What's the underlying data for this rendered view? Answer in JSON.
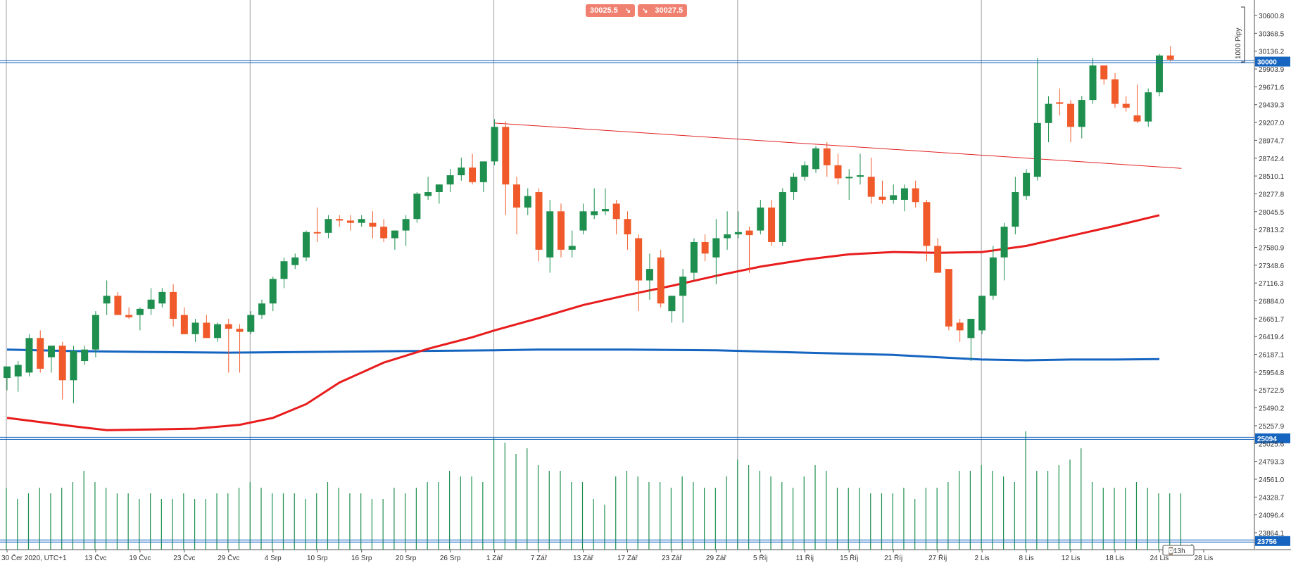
{
  "quote": {
    "sell": "30025.5",
    "buy": "30027.5",
    "sell_arrow_icon": "arrow-down-right-icon",
    "buy_arrow_icon": "arrow-down-right-icon"
  },
  "pip_ruler_label": "1000 Pipy",
  "colors": {
    "up": "#1e8f4e",
    "down": "#f05a2a",
    "ma_red": "#e81c1c",
    "ma_blue": "#1565c0",
    "hline": "#1565c0",
    "trend": "#e02020",
    "volume": "#1e8f4e",
    "grid": "#9e9e9e",
    "pill": "#f08070"
  },
  "horizontal_lines": [
    {
      "label": "30000",
      "price": 30000
    },
    {
      "label": "25094",
      "price": 25094
    },
    {
      "label": "23756",
      "price": 23756
    }
  ],
  "chart_data": {
    "type": "candlestick",
    "instrument_timezone": "UTC+1",
    "ylim": [
      23700,
      30750
    ],
    "y_ticks": [
      "30600.8",
      "30368.5",
      "30136.2",
      "29903.9",
      "29671.6",
      "29439.3",
      "29207.0",
      "28974.7",
      "28742.4",
      "28510.1",
      "28277.8",
      "28045.5",
      "27813.2",
      "27580.9",
      "27348.6",
      "27116.3",
      "26884.0",
      "26651.7",
      "26419.4",
      "26187.1",
      "25954.8",
      "25722.5",
      "25490.2",
      "25257.9",
      "25025.6",
      "24793.3",
      "24561.0",
      "24328.7",
      "24096.4",
      "23864.1"
    ],
    "x_tick_labels": [
      "30 Čer 2020, UTC+1",
      "13 Čvc",
      "19 Čvc",
      "23 Čvc",
      "29 Čvc",
      "4 Srp",
      "10 Srp",
      "16 Srp",
      "20 Srp",
      "26 Srp",
      "1 Zář",
      "7 Zář",
      "13 Zář",
      "17 Zář",
      "23 Zář",
      "29 Zář",
      "5 Říj",
      "11 Říj",
      "15 Říj",
      "21 Říj",
      "27 Říj",
      "2 Lis",
      "8 Lis",
      "12 Lis",
      "18 Lis",
      "24 Lis",
      "28 Lis"
    ],
    "x_tick_index": [
      0,
      8,
      12,
      16,
      20,
      24,
      28,
      32,
      36,
      40,
      44,
      48,
      52,
      56,
      60,
      64,
      68,
      72,
      76,
      80,
      84,
      88,
      92,
      96,
      100,
      104,
      108
    ],
    "vertical_gridlines_index": [
      0,
      22,
      44,
      66,
      88
    ],
    "candles": [
      {
        "o": 25880,
        "h": 25960,
        "l": 25720,
        "c": 26030
      },
      {
        "o": 25900,
        "h": 26100,
        "l": 25700,
        "c": 26050
      },
      {
        "o": 25950,
        "h": 26450,
        "l": 25900,
        "c": 26400
      },
      {
        "o": 26400,
        "h": 26500,
        "l": 25950,
        "c": 26000
      },
      {
        "o": 26150,
        "h": 26300,
        "l": 25950,
        "c": 26300
      },
      {
        "o": 26300,
        "h": 26350,
        "l": 25600,
        "c": 25850
      },
      {
        "o": 25850,
        "h": 26300,
        "l": 25550,
        "c": 26230
      },
      {
        "o": 26100,
        "h": 26300,
        "l": 26050,
        "c": 26250
      },
      {
        "o": 26250,
        "h": 26750,
        "l": 26150,
        "c": 26700
      },
      {
        "o": 26850,
        "h": 27150,
        "l": 26700,
        "c": 26950
      },
      {
        "o": 26950,
        "h": 27000,
        "l": 26700,
        "c": 26700
      },
      {
        "o": 26700,
        "h": 26800,
        "l": 26650,
        "c": 26670
      },
      {
        "o": 26700,
        "h": 26800,
        "l": 26500,
        "c": 26780
      },
      {
        "o": 26780,
        "h": 27050,
        "l": 26700,
        "c": 26900
      },
      {
        "o": 26850,
        "h": 27050,
        "l": 26800,
        "c": 27000
      },
      {
        "o": 27000,
        "h": 27100,
        "l": 26550,
        "c": 26650
      },
      {
        "o": 26700,
        "h": 26800,
        "l": 26450,
        "c": 26450
      },
      {
        "o": 26450,
        "h": 26650,
        "l": 26350,
        "c": 26600
      },
      {
        "o": 26600,
        "h": 26700,
        "l": 26400,
        "c": 26400
      },
      {
        "o": 26400,
        "h": 26600,
        "l": 26350,
        "c": 26580
      },
      {
        "o": 26580,
        "h": 26650,
        "l": 25950,
        "c": 26520
      },
      {
        "o": 26520,
        "h": 26580,
        "l": 25950,
        "c": 26480
      },
      {
        "o": 26480,
        "h": 26750,
        "l": 26450,
        "c": 26700
      },
      {
        "o": 26700,
        "h": 26900,
        "l": 26650,
        "c": 26850
      },
      {
        "o": 26850,
        "h": 27200,
        "l": 26750,
        "c": 27170
      },
      {
        "o": 27170,
        "h": 27450,
        "l": 27050,
        "c": 27400
      },
      {
        "o": 27350,
        "h": 27500,
        "l": 27300,
        "c": 27450
      },
      {
        "o": 27450,
        "h": 27800,
        "l": 27400,
        "c": 27780
      },
      {
        "o": 27780,
        "h": 28100,
        "l": 27650,
        "c": 27770
      },
      {
        "o": 27770,
        "h": 28000,
        "l": 27700,
        "c": 27950
      },
      {
        "o": 27950,
        "h": 28000,
        "l": 27850,
        "c": 27930
      },
      {
        "o": 27930,
        "h": 28000,
        "l": 27800,
        "c": 27900
      },
      {
        "o": 27900,
        "h": 28000,
        "l": 27850,
        "c": 27950
      },
      {
        "o": 27900,
        "h": 28050,
        "l": 27700,
        "c": 27850
      },
      {
        "o": 27850,
        "h": 27950,
        "l": 27650,
        "c": 27700
      },
      {
        "o": 27700,
        "h": 27800,
        "l": 27550,
        "c": 27800
      },
      {
        "o": 27800,
        "h": 28000,
        "l": 27600,
        "c": 27950
      },
      {
        "o": 27950,
        "h": 28300,
        "l": 27900,
        "c": 28280
      },
      {
        "o": 28250,
        "h": 28500,
        "l": 28200,
        "c": 28300
      },
      {
        "o": 28300,
        "h": 28400,
        "l": 28150,
        "c": 28400
      },
      {
        "o": 28400,
        "h": 28600,
        "l": 28300,
        "c": 28520
      },
      {
        "o": 28520,
        "h": 28750,
        "l": 28450,
        "c": 28620
      },
      {
        "o": 28620,
        "h": 28800,
        "l": 28400,
        "c": 28430
      },
      {
        "o": 28430,
        "h": 28700,
        "l": 28300,
        "c": 28700
      },
      {
        "o": 28700,
        "h": 29250,
        "l": 28650,
        "c": 29150
      },
      {
        "o": 29150,
        "h": 29220,
        "l": 28000,
        "c": 28400
      },
      {
        "o": 28400,
        "h": 28500,
        "l": 27750,
        "c": 28100
      },
      {
        "o": 28100,
        "h": 28350,
        "l": 28000,
        "c": 28250
      },
      {
        "o": 28300,
        "h": 28350,
        "l": 27400,
        "c": 27550
      },
      {
        "o": 27450,
        "h": 28200,
        "l": 27250,
        "c": 28050
      },
      {
        "o": 28050,
        "h": 28150,
        "l": 27450,
        "c": 27550
      },
      {
        "o": 27550,
        "h": 27800,
        "l": 27450,
        "c": 27600
      },
      {
        "o": 27800,
        "h": 28150,
        "l": 27750,
        "c": 28050
      },
      {
        "o": 28000,
        "h": 28350,
        "l": 27950,
        "c": 28050
      },
      {
        "o": 28050,
        "h": 28350,
        "l": 28000,
        "c": 28080
      },
      {
        "o": 28150,
        "h": 28200,
        "l": 27750,
        "c": 27950
      },
      {
        "o": 27950,
        "h": 28050,
        "l": 27550,
        "c": 27750
      },
      {
        "o": 27700,
        "h": 27750,
        "l": 26750,
        "c": 27150
      },
      {
        "o": 27150,
        "h": 27500,
        "l": 26900,
        "c": 27300
      },
      {
        "o": 27450,
        "h": 27550,
        "l": 26800,
        "c": 26850
      },
      {
        "o": 26750,
        "h": 26950,
        "l": 26600,
        "c": 26950
      },
      {
        "o": 26950,
        "h": 27300,
        "l": 26600,
        "c": 27200
      },
      {
        "o": 27250,
        "h": 27700,
        "l": 27150,
        "c": 27650
      },
      {
        "o": 27650,
        "h": 27750,
        "l": 27400,
        "c": 27500
      },
      {
        "o": 27450,
        "h": 27950,
        "l": 27100,
        "c": 27700
      },
      {
        "o": 27700,
        "h": 28050,
        "l": 27550,
        "c": 27750
      },
      {
        "o": 27750,
        "h": 28050,
        "l": 27700,
        "c": 27780
      },
      {
        "o": 27800,
        "h": 27850,
        "l": 27250,
        "c": 27740
      },
      {
        "o": 27800,
        "h": 28200,
        "l": 27750,
        "c": 28100
      },
      {
        "o": 28100,
        "h": 28200,
        "l": 27600,
        "c": 27650
      },
      {
        "o": 27650,
        "h": 28350,
        "l": 27600,
        "c": 28300
      },
      {
        "o": 28300,
        "h": 28550,
        "l": 28200,
        "c": 28500
      },
      {
        "o": 28500,
        "h": 28700,
        "l": 28450,
        "c": 28650
      },
      {
        "o": 28600,
        "h": 28900,
        "l": 28550,
        "c": 28870
      },
      {
        "o": 28870,
        "h": 28950,
        "l": 28500,
        "c": 28650
      },
      {
        "o": 28650,
        "h": 28800,
        "l": 28400,
        "c": 28480
      },
      {
        "o": 28480,
        "h": 28600,
        "l": 28200,
        "c": 28500
      },
      {
        "o": 28500,
        "h": 28800,
        "l": 28400,
        "c": 28520
      },
      {
        "o": 28500,
        "h": 28750,
        "l": 28150,
        "c": 28240
      },
      {
        "o": 28240,
        "h": 28450,
        "l": 28150,
        "c": 28200
      },
      {
        "o": 28200,
        "h": 28400,
        "l": 28150,
        "c": 28260
      },
      {
        "o": 28200,
        "h": 28400,
        "l": 28050,
        "c": 28350
      },
      {
        "o": 28350,
        "h": 28450,
        "l": 28100,
        "c": 28170
      },
      {
        "o": 28170,
        "h": 28200,
        "l": 27400,
        "c": 27600
      },
      {
        "o": 27600,
        "h": 27700,
        "l": 27250,
        "c": 27250
      },
      {
        "o": 27300,
        "h": 27300,
        "l": 26500,
        "c": 26550
      },
      {
        "o": 26600,
        "h": 26650,
        "l": 26350,
        "c": 26500
      },
      {
        "o": 26400,
        "h": 26650,
        "l": 26100,
        "c": 26650
      },
      {
        "o": 26500,
        "h": 26900,
        "l": 26450,
        "c": 26950
      },
      {
        "o": 26950,
        "h": 27600,
        "l": 26900,
        "c": 27450
      },
      {
        "o": 27450,
        "h": 27900,
        "l": 27150,
        "c": 27850
      },
      {
        "o": 27850,
        "h": 28500,
        "l": 27750,
        "c": 28300
      },
      {
        "o": 28250,
        "h": 28600,
        "l": 28200,
        "c": 28550
      },
      {
        "o": 28500,
        "h": 30050,
        "l": 28450,
        "c": 29200
      },
      {
        "o": 29200,
        "h": 29550,
        "l": 28950,
        "c": 29450
      },
      {
        "o": 29470,
        "h": 29650,
        "l": 29300,
        "c": 29450
      },
      {
        "o": 29450,
        "h": 29500,
        "l": 28950,
        "c": 29150
      },
      {
        "o": 29150,
        "h": 29550,
        "l": 29000,
        "c": 29500
      },
      {
        "o": 29500,
        "h": 30050,
        "l": 29450,
        "c": 29950
      },
      {
        "o": 29950,
        "h": 29950,
        "l": 29700,
        "c": 29770
      },
      {
        "o": 29770,
        "h": 29850,
        "l": 29400,
        "c": 29450
      },
      {
        "o": 29450,
        "h": 29550,
        "l": 29350,
        "c": 29400
      },
      {
        "o": 29300,
        "h": 29700,
        "l": 29200,
        "c": 29220
      },
      {
        "o": 29220,
        "h": 29650,
        "l": 29150,
        "c": 29600
      },
      {
        "o": 29600,
        "h": 30100,
        "l": 29550,
        "c": 30080
      },
      {
        "o": 30080,
        "h": 30200,
        "l": 30000,
        "c": 30025
      }
    ],
    "ma_red": [
      {
        "i": 0,
        "v": 25360
      },
      {
        "i": 6,
        "v": 25250
      },
      {
        "i": 9,
        "v": 25200
      },
      {
        "i": 13,
        "v": 25210
      },
      {
        "i": 17,
        "v": 25220
      },
      {
        "i": 21,
        "v": 25270
      },
      {
        "i": 24,
        "v": 25360
      },
      {
        "i": 27,
        "v": 25540
      },
      {
        "i": 30,
        "v": 25820
      },
      {
        "i": 34,
        "v": 26080
      },
      {
        "i": 38,
        "v": 26260
      },
      {
        "i": 42,
        "v": 26410
      },
      {
        "i": 44,
        "v": 26500
      },
      {
        "i": 48,
        "v": 26660
      },
      {
        "i": 52,
        "v": 26830
      },
      {
        "i": 56,
        "v": 26960
      },
      {
        "i": 60,
        "v": 27080
      },
      {
        "i": 64,
        "v": 27210
      },
      {
        "i": 68,
        "v": 27330
      },
      {
        "i": 72,
        "v": 27420
      },
      {
        "i": 76,
        "v": 27490
      },
      {
        "i": 80,
        "v": 27520
      },
      {
        "i": 84,
        "v": 27510
      },
      {
        "i": 88,
        "v": 27520
      },
      {
        "i": 92,
        "v": 27600
      },
      {
        "i": 96,
        "v": 27730
      },
      {
        "i": 100,
        "v": 27860
      },
      {
        "i": 104,
        "v": 28000
      }
    ],
    "ma_blue": [
      {
        "i": 0,
        "v": 26250
      },
      {
        "i": 6,
        "v": 26230
      },
      {
        "i": 12,
        "v": 26220
      },
      {
        "i": 20,
        "v": 26210
      },
      {
        "i": 28,
        "v": 26220
      },
      {
        "i": 36,
        "v": 26230
      },
      {
        "i": 44,
        "v": 26240
      },
      {
        "i": 48,
        "v": 26250
      },
      {
        "i": 56,
        "v": 26250
      },
      {
        "i": 64,
        "v": 26240
      },
      {
        "i": 72,
        "v": 26210
      },
      {
        "i": 80,
        "v": 26180
      },
      {
        "i": 84,
        "v": 26150
      },
      {
        "i": 88,
        "v": 26120
      },
      {
        "i": 92,
        "v": 26110
      },
      {
        "i": 96,
        "v": 26120
      },
      {
        "i": 100,
        "v": 26120
      },
      {
        "i": 104,
        "v": 26125
      }
    ],
    "trendline": [
      {
        "i": 44,
        "v": 29200
      },
      {
        "i": 106,
        "v": 28610
      }
    ],
    "volume_levels": [
      0.55,
      0.45,
      0.5,
      0.55,
      0.5,
      0.55,
      0.6,
      0.7,
      0.6,
      0.55,
      0.5,
      0.5,
      0.45,
      0.5,
      0.45,
      0.45,
      0.5,
      0.45,
      0.45,
      0.5,
      0.5,
      0.55,
      0.6,
      0.55,
      0.5,
      0.5,
      0.5,
      0.45,
      0.5,
      0.6,
      0.55,
      0.5,
      0.5,
      0.45,
      0.45,
      0.55,
      0.5,
      0.55,
      0.6,
      0.6,
      0.7,
      0.65,
      0.65,
      0.6,
      1.0,
      0.95,
      0.85,
      0.9,
      0.75,
      0.7,
      0.7,
      0.6,
      0.6,
      0.45,
      0.4,
      0.65,
      0.7,
      0.65,
      0.6,
      0.6,
      0.55,
      0.65,
      0.6,
      0.55,
      0.55,
      0.65,
      0.8,
      0.75,
      0.7,
      0.65,
      0.6,
      0.55,
      0.65,
      0.75,
      0.7,
      0.55,
      0.55,
      0.55,
      0.5,
      0.5,
      0.5,
      0.55,
      0.45,
      0.55,
      0.55,
      0.6,
      0.7,
      0.7,
      0.75,
      0.7,
      0.65,
      0.6,
      1.05,
      0.7,
      0.7,
      0.75,
      0.8,
      0.9,
      0.6,
      0.55,
      0.55,
      0.55,
      0.6,
      0.55,
      0.5,
      0.5,
      0.5,
      0.05
    ]
  },
  "bottom_marker": {
    "label": "13h",
    "clock_icon": "clock-icon"
  }
}
